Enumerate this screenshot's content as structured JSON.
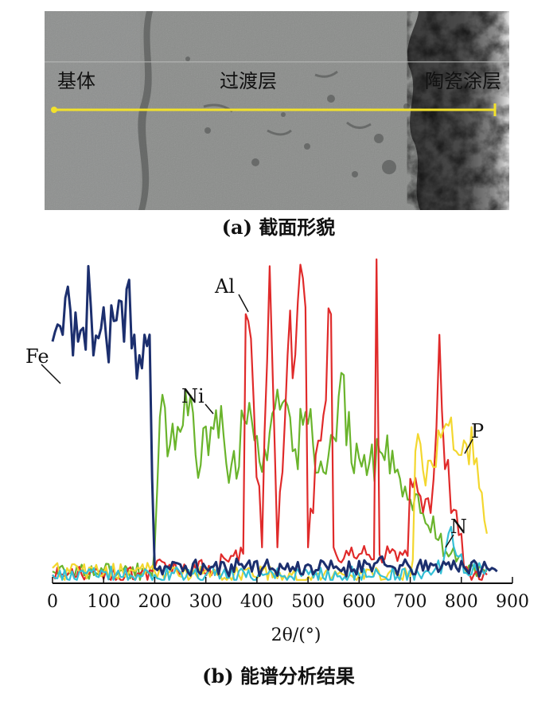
{
  "figure_a": {
    "caption_letter": "(a)",
    "caption_text": "截面形貌",
    "regions": [
      "基体",
      "过渡层",
      "陶瓷涂层"
    ]
  },
  "figure_b": {
    "caption_letter": "(b)",
    "caption_text": "能谱分析结果"
  },
  "chart_data": {
    "type": "line",
    "title": "",
    "xlabel": "2θ/(°)",
    "ylabel": "",
    "xlim": [
      0,
      900
    ],
    "xticks": [
      0,
      100,
      200,
      300,
      400,
      500,
      600,
      700,
      800,
      900
    ],
    "grid": false,
    "legend": "none",
    "series": [
      {
        "name": "Fe",
        "color": "#1c2f6e",
        "x": [
          0,
          10,
          20,
          30,
          40,
          50,
          60,
          70,
          80,
          90,
          100,
          110,
          120,
          130,
          140,
          150,
          160,
          170,
          180,
          190,
          195,
          200,
          250,
          300,
          350,
          400,
          450,
          500,
          550,
          600,
          650,
          700,
          750,
          800,
          850,
          870
        ],
        "y": [
          70,
          75,
          72,
          86,
          66,
          70,
          74,
          92,
          66,
          71,
          80,
          64,
          76,
          82,
          70,
          88,
          72,
          66,
          72,
          72,
          30,
          4,
          5,
          4,
          5,
          6,
          4,
          5,
          4,
          6,
          5,
          4,
          5,
          6,
          4,
          3
        ]
      },
      {
        "name": "Ni",
        "color": "#6ab42c",
        "x": [
          0,
          100,
          190,
          200,
          210,
          230,
          260,
          290,
          320,
          350,
          380,
          410,
          440,
          470,
          500,
          530,
          560,
          600,
          640,
          680,
          700,
          720,
          760,
          800,
          850
        ],
        "y": [
          3,
          3,
          3,
          10,
          48,
          40,
          56,
          34,
          50,
          34,
          46,
          32,
          56,
          38,
          46,
          32,
          54,
          36,
          38,
          30,
          24,
          20,
          14,
          8,
          3
        ]
      },
      {
        "name": "Al",
        "color": "#e02a2a",
        "x": [
          0,
          200,
          330,
          378,
          383,
          410,
          425,
          440,
          460,
          495,
          500,
          545,
          550,
          600,
          634,
          640,
          700,
          740,
          757,
          762,
          780,
          800,
          850
        ],
        "y": [
          2,
          4,
          8,
          78,
          76,
          10,
          92,
          10,
          66,
          80,
          10,
          78,
          10,
          8,
          94,
          8,
          30,
          20,
          72,
          50,
          20,
          14,
          2
        ]
      },
      {
        "name": "P",
        "color": "#f3d72f",
        "x": [
          0,
          200,
          600,
          690,
          710,
          730,
          760,
          770,
          790,
          810,
          830,
          850
        ],
        "y": [
          4,
          3,
          2,
          4,
          38,
          28,
          42,
          46,
          38,
          40,
          36,
          14
        ]
      },
      {
        "name": "N",
        "color": "#34bfd6",
        "x": [
          0,
          200,
          600,
          750,
          770,
          780,
          800,
          850
        ],
        "y": [
          2,
          2,
          2,
          4,
          10,
          16,
          8,
          4
        ]
      }
    ]
  }
}
